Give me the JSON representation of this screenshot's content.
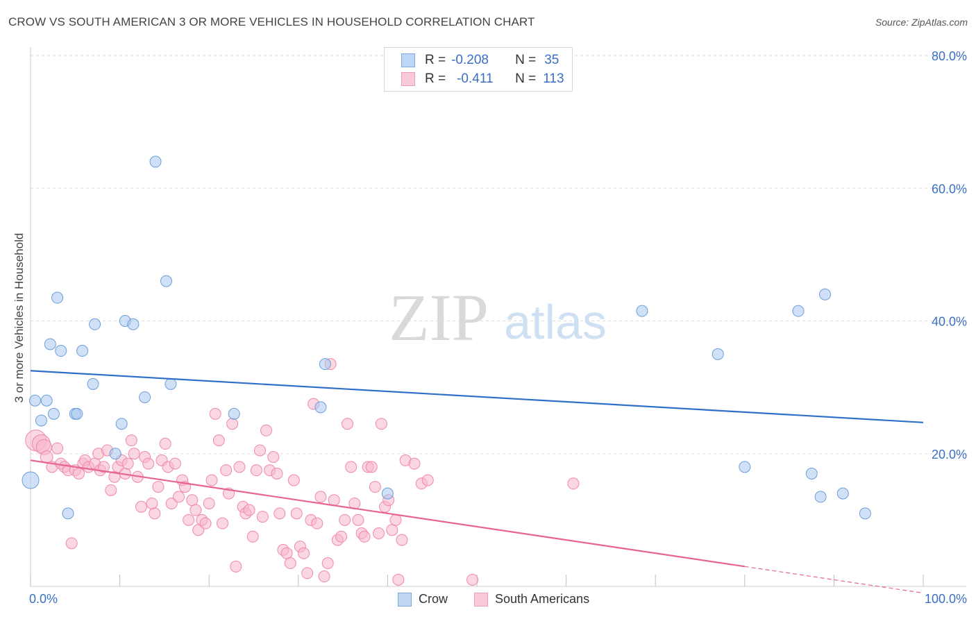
{
  "header": {
    "title": "CROW VS SOUTH AMERICAN 3 OR MORE VEHICLES IN HOUSEHOLD CORRELATION CHART",
    "source": "Source: ZipAtlas.com"
  },
  "watermark": {
    "zip": "ZIP",
    "atlas": "atlas"
  },
  "legend": {
    "rows": [
      {
        "r_label": "R =",
        "r_value": "-0.208",
        "n_label": "N =",
        "n_value": "35",
        "color": "#a9c8f0"
      },
      {
        "r_label": "R =",
        "r_value": "-0.411",
        "n_label": "N =",
        "n_value": "113",
        "color": "#f7b6cb"
      }
    ]
  },
  "bottom_legend": {
    "crow": "Crow",
    "south_americans": "South Americans"
  },
  "chart_data": {
    "type": "scatter",
    "title": "CROW VS SOUTH AMERICAN 3 OR MORE VEHICLES IN HOUSEHOLD CORRELATION CHART",
    "xlabel": "",
    "ylabel": "3 or more Vehicles in Household",
    "xlim": [
      0,
      100
    ],
    "ylim": [
      0,
      80
    ],
    "x_tick_labels": [
      {
        "value": 0,
        "label": "0.0%"
      },
      {
        "value": 100,
        "label": "100.0%"
      }
    ],
    "y_tick_labels": [
      {
        "value": 20,
        "label": "20.0%"
      },
      {
        "value": 40,
        "label": "40.0%"
      },
      {
        "value": 60,
        "label": "60.0%"
      },
      {
        "value": 80,
        "label": "80.0%"
      }
    ],
    "series": [
      {
        "name": "Crow",
        "color": "#a9c8f0",
        "edge": "#6a9ed8",
        "line_color": "#2f6fc8",
        "trend": {
          "x": [
            0,
            100
          ],
          "y": [
            32.5,
            24.7
          ]
        },
        "points": [
          [
            0.0,
            16.0,
            12
          ],
          [
            0.5,
            28.0,
            8
          ],
          [
            1.2,
            25.0,
            8
          ],
          [
            1.8,
            28.0,
            8
          ],
          [
            2.2,
            36.5,
            8
          ],
          [
            2.6,
            26.0,
            8
          ],
          [
            3.0,
            43.5,
            8
          ],
          [
            3.4,
            35.5,
            8
          ],
          [
            4.2,
            11.0,
            8
          ],
          [
            5.0,
            26.0,
            8
          ],
          [
            5.2,
            26.0,
            8
          ],
          [
            5.8,
            35.5,
            8
          ],
          [
            7.0,
            30.5,
            8
          ],
          [
            7.2,
            39.5,
            8
          ],
          [
            9.5,
            20.0,
            8
          ],
          [
            10.2,
            24.5,
            8
          ],
          [
            10.6,
            40.0,
            8
          ],
          [
            11.5,
            39.5,
            8
          ],
          [
            12.8,
            28.5,
            8
          ],
          [
            14.0,
            64.0,
            8
          ],
          [
            15.2,
            46.0,
            8
          ],
          [
            15.7,
            30.5,
            8
          ],
          [
            22.8,
            26.0,
            8
          ],
          [
            32.5,
            27.0,
            8
          ],
          [
            33.0,
            33.5,
            8
          ],
          [
            40.0,
            14.0,
            8
          ],
          [
            68.5,
            41.5,
            8
          ],
          [
            77.0,
            35.0,
            8
          ],
          [
            80.0,
            18.0,
            8
          ],
          [
            86.0,
            41.5,
            8
          ],
          [
            87.5,
            17.0,
            8
          ],
          [
            88.5,
            13.5,
            8
          ],
          [
            89.0,
            44.0,
            8
          ],
          [
            91.0,
            14.0,
            8
          ],
          [
            93.5,
            11.0,
            8
          ]
        ]
      },
      {
        "name": "South Americans",
        "color": "#f7b6cb",
        "edge": "#ee89a9",
        "line_color": "#e8648f",
        "trend": {
          "x": [
            0,
            80
          ],
          "y": [
            19.0,
            3.0
          ]
        },
        "trend_dashed": {
          "x": [
            80,
            100
          ],
          "y": [
            3.0,
            -1.0
          ]
        },
        "points": [
          [
            0.6,
            22.0,
            15
          ],
          [
            1.2,
            21.5,
            13
          ],
          [
            1.5,
            21.0,
            11
          ],
          [
            1.8,
            19.5,
            9
          ],
          [
            2.4,
            18.0,
            8
          ],
          [
            3.0,
            20.8,
            8
          ],
          [
            3.4,
            18.5,
            8
          ],
          [
            3.8,
            18.0,
            8
          ],
          [
            4.2,
            17.5,
            8
          ],
          [
            4.6,
            6.5,
            8
          ],
          [
            5.0,
            17.5,
            8
          ],
          [
            5.4,
            17.0,
            8
          ],
          [
            5.9,
            18.5,
            8
          ],
          [
            6.1,
            19.0,
            8
          ],
          [
            6.5,
            18.0,
            8
          ],
          [
            7.2,
            18.5,
            8
          ],
          [
            7.6,
            20.0,
            8
          ],
          [
            7.8,
            17.5,
            8
          ],
          [
            8.2,
            18.0,
            8
          ],
          [
            8.6,
            20.5,
            8
          ],
          [
            9.0,
            14.5,
            8
          ],
          [
            9.4,
            16.5,
            8
          ],
          [
            9.8,
            18.0,
            8
          ],
          [
            10.2,
            19.0,
            8
          ],
          [
            10.6,
            17.0,
            8
          ],
          [
            10.9,
            18.5,
            8
          ],
          [
            11.3,
            22.0,
            8
          ],
          [
            11.6,
            20.0,
            8
          ],
          [
            12.0,
            16.5,
            8
          ],
          [
            12.4,
            12.0,
            8
          ],
          [
            12.8,
            19.5,
            8
          ],
          [
            13.2,
            18.5,
            8
          ],
          [
            13.6,
            12.5,
            8
          ],
          [
            13.9,
            11.0,
            8
          ],
          [
            14.3,
            15.0,
            8
          ],
          [
            14.7,
            19.0,
            8
          ],
          [
            15.1,
            21.5,
            8
          ],
          [
            15.4,
            18.0,
            8
          ],
          [
            15.8,
            12.5,
            8
          ],
          [
            16.2,
            18.5,
            8
          ],
          [
            16.6,
            13.5,
            8
          ],
          [
            17.0,
            16.0,
            8
          ],
          [
            17.3,
            15.0,
            8
          ],
          [
            17.7,
            10.0,
            8
          ],
          [
            18.1,
            13.0,
            8
          ],
          [
            18.5,
            11.5,
            8
          ],
          [
            18.8,
            8.5,
            8
          ],
          [
            19.2,
            10.0,
            8
          ],
          [
            19.6,
            9.5,
            8
          ],
          [
            20.0,
            12.5,
            8
          ],
          [
            20.3,
            16.0,
            8
          ],
          [
            20.7,
            26.0,
            8
          ],
          [
            21.1,
            22.0,
            8
          ],
          [
            21.5,
            9.5,
            8
          ],
          [
            21.9,
            17.5,
            8
          ],
          [
            22.2,
            14.0,
            8
          ],
          [
            22.6,
            24.5,
            8
          ],
          [
            23.0,
            3.0,
            8
          ],
          [
            23.4,
            18.0,
            8
          ],
          [
            23.8,
            12.0,
            8
          ],
          [
            24.1,
            11.0,
            8
          ],
          [
            24.5,
            11.5,
            8
          ],
          [
            24.9,
            7.5,
            8
          ],
          [
            25.3,
            17.5,
            8
          ],
          [
            25.7,
            20.5,
            8
          ],
          [
            26.0,
            10.5,
            8
          ],
          [
            26.4,
            23.5,
            8
          ],
          [
            26.8,
            17.5,
            8
          ],
          [
            27.2,
            19.5,
            8
          ],
          [
            27.6,
            17.0,
            8
          ],
          [
            27.9,
            11.0,
            8
          ],
          [
            28.3,
            5.5,
            8
          ],
          [
            28.7,
            5.0,
            8
          ],
          [
            29.1,
            3.5,
            8
          ],
          [
            29.5,
            16.0,
            8
          ],
          [
            29.8,
            11.0,
            8
          ],
          [
            30.2,
            6.0,
            8
          ],
          [
            30.6,
            5.0,
            8
          ],
          [
            31.0,
            2.0,
            8
          ],
          [
            31.4,
            10.0,
            8
          ],
          [
            31.7,
            27.5,
            8
          ],
          [
            32.1,
            9.5,
            8
          ],
          [
            32.5,
            13.5,
            8
          ],
          [
            32.9,
            1.5,
            8
          ],
          [
            33.3,
            3.5,
            8
          ],
          [
            33.6,
            33.5,
            8
          ],
          [
            34.0,
            13.0,
            8
          ],
          [
            34.4,
            7.0,
            8
          ],
          [
            34.8,
            7.5,
            8
          ],
          [
            35.2,
            10.0,
            8
          ],
          [
            35.5,
            24.5,
            8
          ],
          [
            35.9,
            18.0,
            8
          ],
          [
            36.3,
            12.5,
            8
          ],
          [
            36.7,
            10.0,
            8
          ],
          [
            37.1,
            8.0,
            8
          ],
          [
            37.4,
            7.5,
            8
          ],
          [
            37.8,
            18.0,
            8
          ],
          [
            38.2,
            18.0,
            8
          ],
          [
            38.6,
            15.0,
            8
          ],
          [
            39.0,
            8.0,
            8
          ],
          [
            39.3,
            24.5,
            8
          ],
          [
            39.7,
            12.0,
            8
          ],
          [
            40.1,
            13.0,
            8
          ],
          [
            40.5,
            8.5,
            8
          ],
          [
            40.9,
            10.0,
            8
          ],
          [
            41.2,
            1.0,
            8
          ],
          [
            41.6,
            7.0,
            8
          ],
          [
            42.0,
            19.0,
            8
          ],
          [
            43.0,
            18.5,
            8
          ],
          [
            43.8,
            15.5,
            8
          ],
          [
            44.5,
            16.0,
            8
          ],
          [
            60.8,
            15.5,
            8
          ],
          [
            49.5,
            1.0,
            8
          ]
        ]
      }
    ],
    "legend_position": "top-center",
    "grid": true
  }
}
